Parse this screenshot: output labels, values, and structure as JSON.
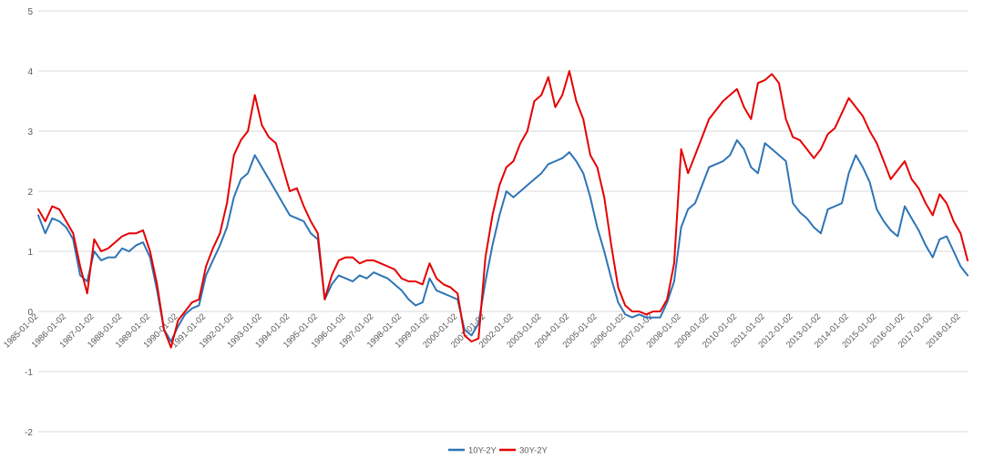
{
  "chart_data": {
    "type": "line",
    "title": "",
    "xlabel": "",
    "ylabel": "",
    "ylim": [
      -2,
      5
    ],
    "yticks": [
      -2,
      -1,
      0,
      1,
      2,
      3,
      4,
      5
    ],
    "grid": true,
    "legend_placement": "bottom-center",
    "x_tick_labels": [
      "1985-01-02",
      "1986-01-02",
      "1987-01-02",
      "1988-01-02",
      "1989-01-02",
      "1990-01-02",
      "1991-01-02",
      "1992-01-02",
      "1993-01-02",
      "1994-01-02",
      "1995-01-02",
      "1996-01-02",
      "1997-01-02",
      "1998-01-02",
      "1999-01-02",
      "2000-01-02",
      "2001-01-02",
      "2002-01-02",
      "2003-01-02",
      "2004-01-02",
      "2005-01-02",
      "2006-01-02",
      "2007-01-02",
      "2008-01-02",
      "2009-01-02",
      "2010-01-02",
      "2011-01-02",
      "2012-01-02",
      "2013-01-02",
      "2014-01-02",
      "2015-01-02",
      "2016-01-02",
      "2017-01-02",
      "2018-01-02"
    ],
    "x": [
      1985.0,
      1985.25,
      1985.5,
      1985.75,
      1986.0,
      1986.25,
      1986.5,
      1986.75,
      1987.0,
      1987.25,
      1987.5,
      1987.75,
      1988.0,
      1988.25,
      1988.5,
      1988.75,
      1989.0,
      1989.25,
      1989.5,
      1989.75,
      1990.0,
      1990.25,
      1990.5,
      1990.75,
      1991.0,
      1991.25,
      1991.5,
      1991.75,
      1992.0,
      1992.25,
      1992.5,
      1992.75,
      1993.0,
      1993.25,
      1993.5,
      1993.75,
      1994.0,
      1994.25,
      1994.5,
      1994.75,
      1995.0,
      1995.25,
      1995.5,
      1995.75,
      1996.0,
      1996.25,
      1996.5,
      1996.75,
      1997.0,
      1997.25,
      1997.5,
      1997.75,
      1998.0,
      1998.25,
      1998.5,
      1998.75,
      1999.0,
      1999.25,
      1999.5,
      1999.75,
      2000.0,
      2000.25,
      2000.5,
      2000.75,
      2001.0,
      2001.25,
      2001.5,
      2001.75,
      2002.0,
      2002.25,
      2002.5,
      2002.75,
      2003.0,
      2003.25,
      2003.5,
      2003.75,
      2004.0,
      2004.25,
      2004.5,
      2004.75,
      2005.0,
      2005.25,
      2005.5,
      2005.75,
      2006.0,
      2006.25,
      2006.5,
      2006.75,
      2007.0,
      2007.25,
      2007.5,
      2007.75,
      2008.0,
      2008.25,
      2008.5,
      2008.75,
      2009.0,
      2009.25,
      2009.5,
      2009.75,
      2010.0,
      2010.25,
      2010.5,
      2010.75,
      2011.0,
      2011.25,
      2011.5,
      2011.75,
      2012.0,
      2012.25,
      2012.5,
      2012.75,
      2013.0,
      2013.25,
      2013.5,
      2013.75,
      2014.0,
      2014.25,
      2014.5,
      2014.75,
      2015.0,
      2015.25,
      2015.5,
      2015.75,
      2016.0,
      2016.25,
      2016.5,
      2016.75,
      2017.0,
      2017.25,
      2017.5,
      2017.75,
      2018.0,
      2018.25
    ],
    "series": [
      {
        "name": "10Y-2Y",
        "color": "#2E75B6",
        "values": [
          1.6,
          1.3,
          1.55,
          1.5,
          1.4,
          1.2,
          0.6,
          0.5,
          1.0,
          0.85,
          0.9,
          0.9,
          1.05,
          1.0,
          1.1,
          1.15,
          0.9,
          0.35,
          -0.3,
          -0.5,
          -0.25,
          -0.05,
          0.05,
          0.1,
          0.6,
          0.85,
          1.1,
          1.4,
          1.9,
          2.2,
          2.3,
          2.6,
          2.4,
          2.2,
          2.0,
          1.8,
          1.6,
          1.55,
          1.5,
          1.3,
          1.2,
          0.2,
          0.45,
          0.6,
          0.55,
          0.5,
          0.6,
          0.55,
          0.65,
          0.6,
          0.55,
          0.45,
          0.35,
          0.2,
          0.1,
          0.15,
          0.55,
          0.35,
          0.3,
          0.25,
          0.2,
          -0.3,
          -0.4,
          -0.2,
          0.5,
          1.1,
          1.6,
          2.0,
          1.9,
          2.0,
          2.1,
          2.2,
          2.3,
          2.45,
          2.5,
          2.55,
          2.65,
          2.5,
          2.3,
          1.9,
          1.4,
          1.0,
          0.55,
          0.15,
          -0.05,
          -0.1,
          -0.05,
          -0.1,
          -0.1,
          -0.1,
          0.15,
          0.5,
          1.4,
          1.7,
          1.8,
          2.1,
          2.4,
          2.45,
          2.5,
          2.6,
          2.85,
          2.7,
          2.4,
          2.3,
          2.8,
          2.7,
          2.6,
          2.5,
          1.8,
          1.65,
          1.55,
          1.4,
          1.3,
          1.7,
          1.75,
          1.8,
          2.3,
          2.6,
          2.4,
          2.15,
          1.7,
          1.5,
          1.35,
          1.25,
          1.75,
          1.55,
          1.35,
          1.1,
          0.9,
          1.2,
          1.25,
          1.0,
          0.75,
          0.6
        ]
      },
      {
        "name": "30Y-2Y",
        "color": "#E60000",
        "values": [
          1.7,
          1.5,
          1.75,
          1.7,
          1.5,
          1.3,
          0.75,
          0.3,
          1.2,
          1.0,
          1.05,
          1.15,
          1.25,
          1.3,
          1.3,
          1.35,
          1.0,
          0.45,
          -0.3,
          -0.6,
          -0.15,
          0.0,
          0.15,
          0.2,
          0.75,
          1.05,
          1.3,
          1.8,
          2.6,
          2.85,
          3.0,
          3.6,
          3.1,
          2.9,
          2.8,
          2.4,
          2.0,
          2.05,
          1.75,
          1.5,
          1.3,
          0.2,
          0.6,
          0.85,
          0.9,
          0.9,
          0.8,
          0.85,
          0.85,
          0.8,
          0.75,
          0.7,
          0.55,
          0.5,
          0.5,
          0.45,
          0.8,
          0.55,
          0.45,
          0.4,
          0.3,
          -0.4,
          -0.5,
          -0.45,
          0.9,
          1.6,
          2.1,
          2.4,
          2.5,
          2.8,
          3.0,
          3.5,
          3.6,
          3.9,
          3.4,
          3.6,
          4.0,
          3.5,
          3.2,
          2.6,
          2.4,
          1.9,
          1.1,
          0.4,
          0.1,
          0.0,
          0.0,
          -0.05,
          0.0,
          0.0,
          0.2,
          0.8,
          2.7,
          2.3,
          2.6,
          2.9,
          3.2,
          3.35,
          3.5,
          3.6,
          3.7,
          3.4,
          3.2,
          3.8,
          3.85,
          3.95,
          3.8,
          3.2,
          2.9,
          2.85,
          2.7,
          2.55,
          2.7,
          2.95,
          3.05,
          3.3,
          3.55,
          3.4,
          3.25,
          3.0,
          2.8,
          2.5,
          2.2,
          2.35,
          2.5,
          2.2,
          2.05,
          1.8,
          1.6,
          1.95,
          1.8,
          1.5,
          1.3,
          0.85
        ]
      }
    ]
  }
}
